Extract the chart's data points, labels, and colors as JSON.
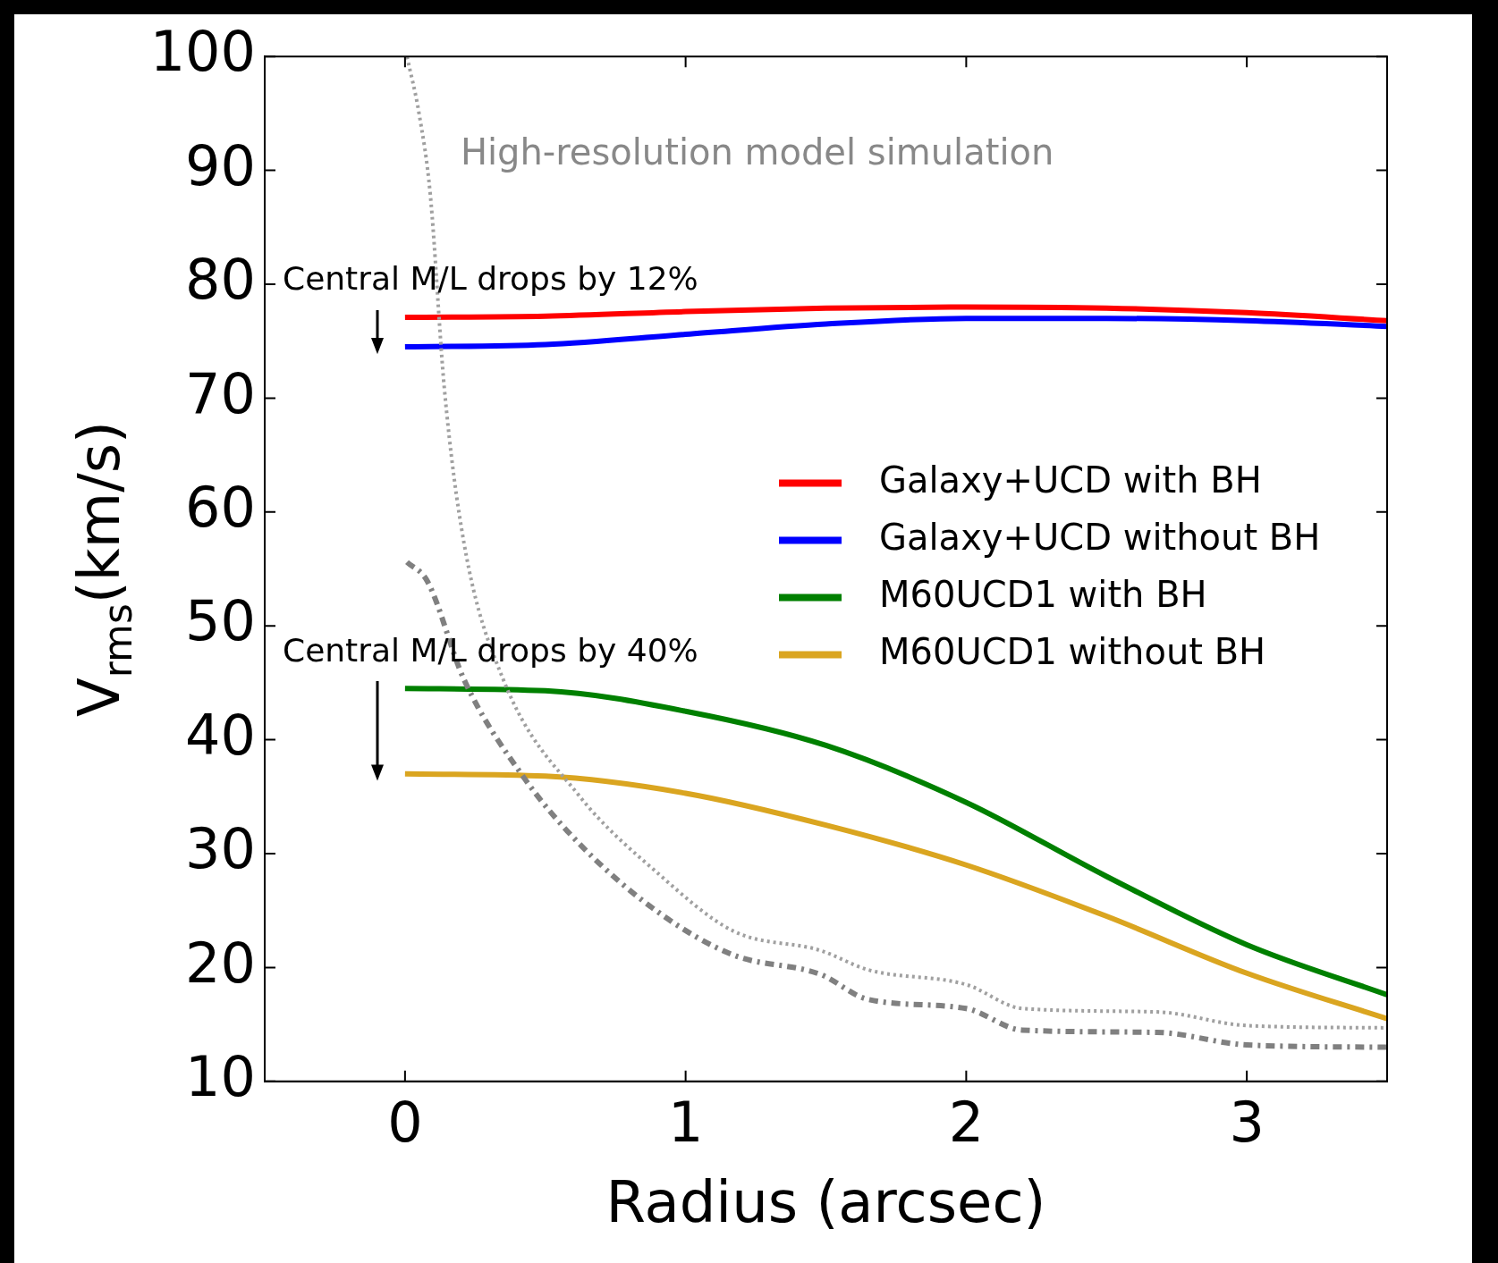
{
  "chart_data": {
    "type": "line",
    "xlabel": "Radius (arcsec)",
    "ylabel": "V$_{rms}$(km/s)",
    "xlim": [
      -0.5,
      3.5
    ],
    "xticks": [
      0,
      1,
      2,
      3
    ],
    "ylim": [
      10,
      100
    ],
    "yticks": [
      10,
      20,
      30,
      40,
      50,
      60,
      70,
      80,
      90,
      100
    ],
    "grid": false,
    "legend": "right",
    "marker": "none",
    "series": [
      {
        "name": "Galaxy+UCD with BH",
        "color": "#ff0000",
        "line_style": "solid",
        "x": [
          0,
          0.5,
          1,
          1.5,
          2,
          2.5,
          3,
          3.5
        ],
        "values": [
          77.1,
          77.2,
          77.6,
          77.9,
          78,
          77.9,
          77.5,
          76.8
        ]
      },
      {
        "name": "Galaxy+UCD without BH",
        "color": "#0000ff",
        "line_style": "solid",
        "x": [
          0,
          0.5,
          1,
          1.5,
          2,
          2.5,
          3,
          3.5
        ],
        "values": [
          74.5,
          74.7,
          75.6,
          76.5,
          77,
          77,
          76.8,
          76.3
        ]
      },
      {
        "name": "M60UCD1 with BH",
        "color": "#008000",
        "line_style": "solid",
        "x": [
          0,
          0.5,
          1,
          1.5,
          2,
          2.5,
          3,
          3.5
        ],
        "values": [
          44.5,
          44.3,
          42.5,
          39.5,
          34.5,
          28,
          22,
          17.6
        ]
      },
      {
        "name": "M60UCD1 without BH",
        "color": "#daa520",
        "line_style": "solid",
        "x": [
          0,
          0.5,
          1,
          1.5,
          2,
          2.5,
          3,
          3.5
        ],
        "values": [
          37,
          36.8,
          35.3,
          32.5,
          29,
          24.5,
          19.5,
          15.5
        ]
      },
      {
        "color": "#a0a0a0",
        "line_style": "dotted",
        "x": [
          0.007,
          0.05,
          0.09,
          0.14,
          0.21,
          0.35,
          0.62,
          0.9,
          1.17,
          1.48,
          1.65,
          2.0,
          2.2,
          2.68,
          3.0,
          3.5
        ],
        "values": [
          100,
          95,
          87.9,
          70.9,
          57.3,
          45.3,
          35.1,
          28.3,
          23.2,
          21.5,
          19.8,
          18.5,
          16.4,
          16.1,
          14.9,
          14.7
        ]
      },
      {
        "color": "#808080",
        "line_style": "dashdot",
        "x": [
          0.007,
          0.08,
          0.21,
          0.42,
          0.62,
          0.9,
          1.17,
          1.48,
          1.65,
          2.0,
          2.2,
          2.68,
          3.0,
          3.5
        ],
        "values": [
          55.6,
          53.9,
          45.3,
          36.8,
          30.9,
          24.9,
          21.1,
          19.4,
          17.2,
          16.4,
          14.5,
          14.3,
          13.2,
          13
        ]
      }
    ],
    "annotations": [
      "High-resolution model simulation",
      "Central M/L drops by 12%",
      "Central M/L drops by 40%"
    ]
  }
}
